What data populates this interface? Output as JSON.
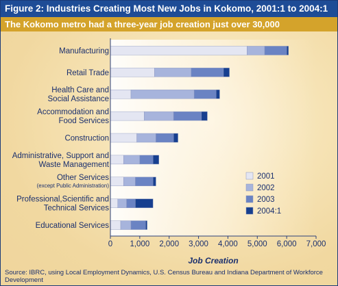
{
  "header": {
    "title": "Figure 2: Industries Creating Most New Jobs in Kokomo, 2001:1 to 2004:1",
    "subtitle": "The Kokomo metro had a three-year job creation just over 30,000"
  },
  "source_text": "Source: IBRC, using Local Employment Dynamics, U.S. Census Bureau and Indiana Department of Workforce Development",
  "colors": {
    "2001": "#e4e6f2",
    "2002": "#a7b4dc",
    "2003": "#6a83c3",
    "2004:1": "#173f8f",
    "text": "#1a2f6e",
    "axis": "#2b3f7a"
  },
  "chart_data": {
    "type": "bar",
    "orientation": "horizontal",
    "stacked": true,
    "categories": [
      [
        "Manufacturing"
      ],
      [
        "Retail Trade"
      ],
      [
        "Health Care and",
        "Social Assistance"
      ],
      [
        "Accommodation and",
        "Food Services"
      ],
      [
        "Construction"
      ],
      [
        "Administrative, Support and",
        "Waste Management"
      ],
      [
        "Other Services",
        "(except Public Administration)"
      ],
      [
        "Professional,Scientific and",
        "Technical Services"
      ],
      [
        "Educational Services"
      ]
    ],
    "series": [
      {
        "name": "2001",
        "values": [
          4650,
          1500,
          700,
          1150,
          900,
          450,
          450,
          250,
          350
        ]
      },
      {
        "name": "2002",
        "values": [
          600,
          1250,
          2150,
          1000,
          650,
          550,
          400,
          300,
          350
        ]
      },
      {
        "name": "2003",
        "values": [
          750,
          1100,
          750,
          950,
          600,
          450,
          600,
          300,
          500
        ]
      },
      {
        "name": "2004:1",
        "values": [
          60,
          200,
          120,
          200,
          150,
          200,
          100,
          600,
          50
        ]
      }
    ],
    "xlabel": "Job Creation",
    "xlim": [
      0,
      7000
    ],
    "xticks": [
      "0",
      "1,000",
      "2,000",
      "3,000",
      "4,000",
      "5,000",
      "6,000",
      "7,000"
    ],
    "legend": [
      "2001",
      "2002",
      "2003",
      "2004:1"
    ],
    "legend_position": "right",
    "grid": false
  }
}
